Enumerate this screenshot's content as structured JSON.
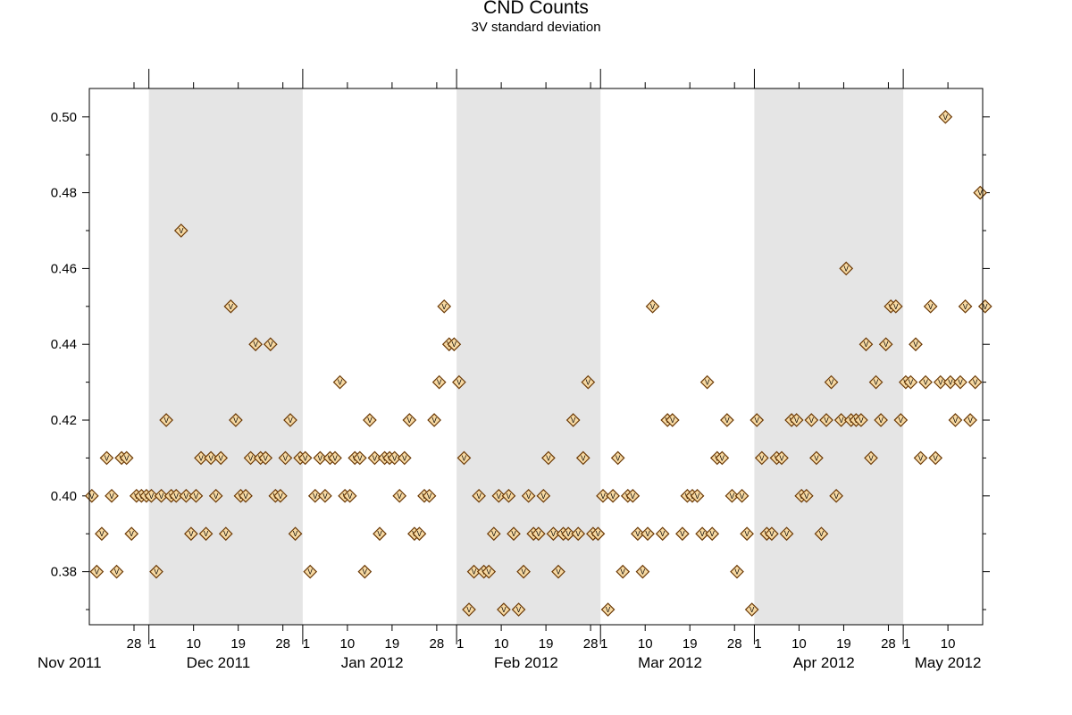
{
  "chart_data": {
    "type": "scatter",
    "title": "CND Counts",
    "subtitle": "3V standard deviation",
    "xlabel": "",
    "ylabel": "",
    "x_type": "date",
    "xlim": [
      "2011-11-19",
      "2012-05-16"
    ],
    "ylim": [
      0.366,
      0.5075
    ],
    "y_ticks": [
      0.38,
      0.4,
      0.42,
      0.44,
      0.46,
      0.48,
      0.5
    ],
    "y_tick_labels": [
      "0.38",
      "0.40",
      "0.42",
      "0.44",
      "0.46",
      "0.48",
      "0.50"
    ],
    "x_day_ticks": [
      {
        "date": "2011-11-28",
        "label": "28"
      },
      {
        "date": "2011-12-01",
        "label": "1"
      },
      {
        "date": "2011-12-10",
        "label": "10"
      },
      {
        "date": "2011-12-19",
        "label": "19"
      },
      {
        "date": "2011-12-28",
        "label": "28"
      },
      {
        "date": "2012-01-01",
        "label": "1"
      },
      {
        "date": "2012-01-10",
        "label": "10"
      },
      {
        "date": "2012-01-19",
        "label": "19"
      },
      {
        "date": "2012-01-28",
        "label": "28"
      },
      {
        "date": "2012-02-01",
        "label": "1"
      },
      {
        "date": "2012-02-10",
        "label": "10"
      },
      {
        "date": "2012-02-19",
        "label": "19"
      },
      {
        "date": "2012-02-28",
        "label": "28"
      },
      {
        "date": "2012-03-01",
        "label": "1"
      },
      {
        "date": "2012-03-10",
        "label": "10"
      },
      {
        "date": "2012-03-19",
        "label": "19"
      },
      {
        "date": "2012-03-28",
        "label": "28"
      },
      {
        "date": "2012-04-01",
        "label": "1"
      },
      {
        "date": "2012-04-10",
        "label": "10"
      },
      {
        "date": "2012-04-19",
        "label": "19"
      },
      {
        "date": "2012-04-28",
        "label": "28"
      },
      {
        "date": "2012-05-01",
        "label": "1"
      },
      {
        "date": "2012-05-10",
        "label": "10"
      }
    ],
    "month_labels": [
      {
        "date": "2011-11-15",
        "label": "Nov 2011"
      },
      {
        "date": "2011-12-15",
        "label": "Dec 2011"
      },
      {
        "date": "2012-01-15",
        "label": "Jan 2012"
      },
      {
        "date": "2012-02-15",
        "label": "Feb 2012"
      },
      {
        "date": "2012-03-15",
        "label": "Mar 2012"
      },
      {
        "date": "2012-04-15",
        "label": "Apr 2012"
      },
      {
        "date": "2012-05-10",
        "label": "May 2012"
      }
    ],
    "shaded_months": [
      {
        "start": "2011-12-01",
        "end": "2012-01-01"
      },
      {
        "start": "2012-02-01",
        "end": "2012-03-01"
      },
      {
        "start": "2012-04-01",
        "end": "2012-05-01"
      }
    ],
    "marker_label": "V",
    "colors": {
      "marker_fill": "#f7d9a2",
      "marker_stroke": "#6b3a07",
      "shade": "#e5e5e5"
    },
    "series": [
      {
        "points": [
          [
            "2011-11-19",
            0.4
          ],
          [
            "2011-11-20",
            0.38
          ],
          [
            "2011-11-21",
            0.39
          ],
          [
            "2011-11-22",
            0.41
          ],
          [
            "2011-11-23",
            0.4
          ],
          [
            "2011-11-24",
            0.38
          ],
          [
            "2011-11-25",
            0.41
          ],
          [
            "2011-11-26",
            0.41
          ],
          [
            "2011-11-27",
            0.39
          ],
          [
            "2011-11-28",
            0.4
          ],
          [
            "2011-11-29",
            0.4
          ],
          [
            "2011-11-30",
            0.4
          ],
          [
            "2011-12-01",
            0.4
          ],
          [
            "2011-12-02",
            0.38
          ],
          [
            "2011-12-03",
            0.4
          ],
          [
            "2011-12-04",
            0.42
          ],
          [
            "2011-12-05",
            0.4
          ],
          [
            "2011-12-06",
            0.4
          ],
          [
            "2011-12-07",
            0.47
          ],
          [
            "2011-12-08",
            0.4
          ],
          [
            "2011-12-09",
            0.39
          ],
          [
            "2011-12-10",
            0.4
          ],
          [
            "2011-12-11",
            0.41
          ],
          [
            "2011-12-12",
            0.39
          ],
          [
            "2011-12-13",
            0.41
          ],
          [
            "2011-12-14",
            0.4
          ],
          [
            "2011-12-15",
            0.41
          ],
          [
            "2011-12-16",
            0.39
          ],
          [
            "2011-12-17",
            0.45
          ],
          [
            "2011-12-18",
            0.42
          ],
          [
            "2011-12-19",
            0.4
          ],
          [
            "2011-12-20",
            0.4
          ],
          [
            "2011-12-21",
            0.41
          ],
          [
            "2011-12-22",
            0.44
          ],
          [
            "2011-12-23",
            0.41
          ],
          [
            "2011-12-24",
            0.41
          ],
          [
            "2011-12-25",
            0.44
          ],
          [
            "2011-12-26",
            0.4
          ],
          [
            "2011-12-27",
            0.4
          ],
          [
            "2011-12-28",
            0.41
          ],
          [
            "2011-12-29",
            0.42
          ],
          [
            "2011-12-30",
            0.39
          ],
          [
            "2011-12-31",
            0.41
          ],
          [
            "2012-01-01",
            0.41
          ],
          [
            "2012-01-02",
            0.38
          ],
          [
            "2012-01-03",
            0.4
          ],
          [
            "2012-01-04",
            0.41
          ],
          [
            "2012-01-05",
            0.4
          ],
          [
            "2012-01-06",
            0.41
          ],
          [
            "2012-01-07",
            0.41
          ],
          [
            "2012-01-08",
            0.43
          ],
          [
            "2012-01-09",
            0.4
          ],
          [
            "2012-01-10",
            0.4
          ],
          [
            "2012-01-11",
            0.41
          ],
          [
            "2012-01-12",
            0.41
          ],
          [
            "2012-01-13",
            0.38
          ],
          [
            "2012-01-14",
            0.42
          ],
          [
            "2012-01-15",
            0.41
          ],
          [
            "2012-01-16",
            0.39
          ],
          [
            "2012-01-17",
            0.41
          ],
          [
            "2012-01-18",
            0.41
          ],
          [
            "2012-01-19",
            0.41
          ],
          [
            "2012-01-20",
            0.4
          ],
          [
            "2012-01-21",
            0.41
          ],
          [
            "2012-01-22",
            0.42
          ],
          [
            "2012-01-23",
            0.39
          ],
          [
            "2012-01-24",
            0.39
          ],
          [
            "2012-01-25",
            0.4
          ],
          [
            "2012-01-26",
            0.4
          ],
          [
            "2012-01-27",
            0.42
          ],
          [
            "2012-01-28",
            0.43
          ],
          [
            "2012-01-29",
            0.45
          ],
          [
            "2012-01-30",
            0.44
          ],
          [
            "2012-01-31",
            0.44
          ],
          [
            "2012-02-01",
            0.43
          ],
          [
            "2012-02-02",
            0.41
          ],
          [
            "2012-02-03",
            0.37
          ],
          [
            "2012-02-04",
            0.38
          ],
          [
            "2012-02-05",
            0.4
          ],
          [
            "2012-02-06",
            0.38
          ],
          [
            "2012-02-07",
            0.38
          ],
          [
            "2012-02-08",
            0.39
          ],
          [
            "2012-02-09",
            0.4
          ],
          [
            "2012-02-10",
            0.37
          ],
          [
            "2012-02-11",
            0.4
          ],
          [
            "2012-02-12",
            0.39
          ],
          [
            "2012-02-13",
            0.37
          ],
          [
            "2012-02-14",
            0.38
          ],
          [
            "2012-02-15",
            0.4
          ],
          [
            "2012-02-16",
            0.39
          ],
          [
            "2012-02-17",
            0.39
          ],
          [
            "2012-02-18",
            0.4
          ],
          [
            "2012-02-19",
            0.41
          ],
          [
            "2012-02-20",
            0.39
          ],
          [
            "2012-02-21",
            0.38
          ],
          [
            "2012-02-22",
            0.39
          ],
          [
            "2012-02-23",
            0.39
          ],
          [
            "2012-02-24",
            0.42
          ],
          [
            "2012-02-25",
            0.39
          ],
          [
            "2012-02-26",
            0.41
          ],
          [
            "2012-02-27",
            0.43
          ],
          [
            "2012-02-28",
            0.39
          ],
          [
            "2012-02-29",
            0.39
          ],
          [
            "2012-03-01",
            0.4
          ],
          [
            "2012-03-02",
            0.37
          ],
          [
            "2012-03-03",
            0.4
          ],
          [
            "2012-03-04",
            0.41
          ],
          [
            "2012-03-05",
            0.38
          ],
          [
            "2012-03-06",
            0.4
          ],
          [
            "2012-03-07",
            0.4
          ],
          [
            "2012-03-08",
            0.39
          ],
          [
            "2012-03-09",
            0.38
          ],
          [
            "2012-03-10",
            0.39
          ],
          [
            "2012-03-11",
            0.45
          ],
          [
            "2012-03-13",
            0.39
          ],
          [
            "2012-03-14",
            0.42
          ],
          [
            "2012-03-15",
            0.42
          ],
          [
            "2012-03-17",
            0.39
          ],
          [
            "2012-03-18",
            0.4
          ],
          [
            "2012-03-19",
            0.4
          ],
          [
            "2012-03-20",
            0.4
          ],
          [
            "2012-03-21",
            0.39
          ],
          [
            "2012-03-22",
            0.43
          ],
          [
            "2012-03-23",
            0.39
          ],
          [
            "2012-03-24",
            0.41
          ],
          [
            "2012-03-25",
            0.41
          ],
          [
            "2012-03-26",
            0.42
          ],
          [
            "2012-03-27",
            0.4
          ],
          [
            "2012-03-28",
            0.38
          ],
          [
            "2012-03-29",
            0.4
          ],
          [
            "2012-03-30",
            0.39
          ],
          [
            "2012-03-31",
            0.37
          ],
          [
            "2012-04-01",
            0.42
          ],
          [
            "2012-04-02",
            0.41
          ],
          [
            "2012-04-03",
            0.39
          ],
          [
            "2012-04-04",
            0.39
          ],
          [
            "2012-04-05",
            0.41
          ],
          [
            "2012-04-06",
            0.41
          ],
          [
            "2012-04-07",
            0.39
          ],
          [
            "2012-04-08",
            0.42
          ],
          [
            "2012-04-09",
            0.42
          ],
          [
            "2012-04-10",
            0.4
          ],
          [
            "2012-04-11",
            0.4
          ],
          [
            "2012-04-12",
            0.42
          ],
          [
            "2012-04-13",
            0.41
          ],
          [
            "2012-04-14",
            0.39
          ],
          [
            "2012-04-15",
            0.42
          ],
          [
            "2012-04-16",
            0.43
          ],
          [
            "2012-04-17",
            0.4
          ],
          [
            "2012-04-18",
            0.42
          ],
          [
            "2012-04-19",
            0.46
          ],
          [
            "2012-04-20",
            0.42
          ],
          [
            "2012-04-21",
            0.42
          ],
          [
            "2012-04-22",
            0.42
          ],
          [
            "2012-04-23",
            0.44
          ],
          [
            "2012-04-24",
            0.41
          ],
          [
            "2012-04-25",
            0.43
          ],
          [
            "2012-04-26",
            0.42
          ],
          [
            "2012-04-27",
            0.44
          ],
          [
            "2012-04-28",
            0.45
          ],
          [
            "2012-04-29",
            0.45
          ],
          [
            "2012-04-30",
            0.42
          ],
          [
            "2012-05-01",
            0.43
          ],
          [
            "2012-05-02",
            0.43
          ],
          [
            "2012-05-03",
            0.44
          ],
          [
            "2012-05-04",
            0.41
          ],
          [
            "2012-05-05",
            0.43
          ],
          [
            "2012-05-06",
            0.45
          ],
          [
            "2012-05-07",
            0.41
          ],
          [
            "2012-05-08",
            0.43
          ],
          [
            "2012-05-09",
            0.5
          ],
          [
            "2012-05-10",
            0.43
          ],
          [
            "2012-05-11",
            0.42
          ],
          [
            "2012-05-12",
            0.43
          ],
          [
            "2012-05-13",
            0.45
          ],
          [
            "2012-05-14",
            0.42
          ],
          [
            "2012-05-15",
            0.43
          ],
          [
            "2012-05-16",
            0.48
          ],
          [
            "2012-05-17",
            0.45
          ]
        ]
      }
    ]
  }
}
